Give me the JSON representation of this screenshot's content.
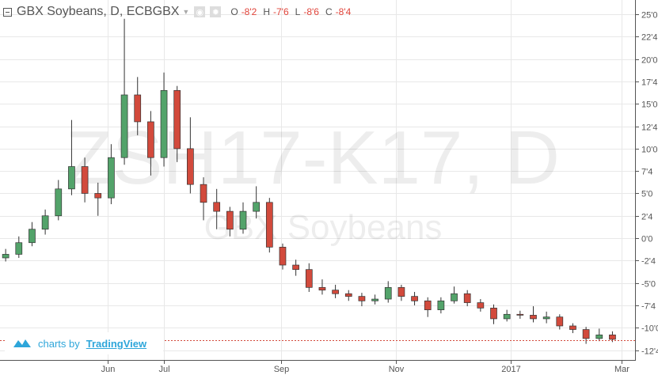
{
  "header": {
    "title": "GBX Soybeans, D, ECBGBX",
    "ohlc": [
      {
        "label": "O",
        "value": "-8'2"
      },
      {
        "label": "H",
        "value": "-7'6"
      },
      {
        "label": "L",
        "value": "-8'6"
      },
      {
        "label": "C",
        "value": "-8'4"
      }
    ]
  },
  "watermark": {
    "symbol": "ZSH17-K17, D",
    "name": "GBX Soybeans"
  },
  "branding": {
    "prefix": "charts by",
    "link": "TradingView"
  },
  "colors": {
    "up": "#53a36a",
    "down": "#d24a3c",
    "wick": "#333333",
    "price_line": "#d24a3c",
    "grid": "#e8e8e8",
    "accent": "#2ea6da"
  },
  "chart_data": {
    "type": "candlestick",
    "title": "GBX Soybeans, D, ECBGBX",
    "x_ticks": [
      {
        "label": "Jun",
        "date": "2016-06-01"
      },
      {
        "label": "Jul",
        "date": "2016-07-01"
      },
      {
        "label": "Sep",
        "date": "2016-09-01"
      },
      {
        "label": "Nov",
        "date": "2016-11-01"
      },
      {
        "label": "2017",
        "date": "2017-01-01"
      },
      {
        "label": "Mar",
        "date": "2017-03-01"
      }
    ],
    "y_ticks": [
      {
        "label": "25'0",
        "value": 25
      },
      {
        "label": "22'4",
        "value": 22.5
      },
      {
        "label": "20'0",
        "value": 20
      },
      {
        "label": "17'4",
        "value": 17.5
      },
      {
        "label": "15'0",
        "value": 15
      },
      {
        "label": "12'4",
        "value": 12.5
      },
      {
        "label": "10'0",
        "value": 10
      },
      {
        "label": "7'4",
        "value": 7.5
      },
      {
        "label": "5'0",
        "value": 5
      },
      {
        "label": "2'4",
        "value": 2.5
      },
      {
        "label": "0'0",
        "value": 0
      },
      {
        "label": "-2'4",
        "value": -2.5
      },
      {
        "label": "-5'0",
        "value": -5
      },
      {
        "label": "-7'4",
        "value": -7.5
      },
      {
        "label": "-10'0",
        "value": -10
      },
      {
        "label": "-12'4",
        "value": -12.5
      }
    ],
    "ylim": [
      -13.6,
      26.6
    ],
    "xlim": [
      "2016-04-05",
      "2017-03-08"
    ],
    "grid": true,
    "last_price": -11.4,
    "candles": [
      [
        "2016-04-08",
        -2.2,
        -1.2,
        -2.6,
        -1.8
      ],
      [
        "2016-04-15",
        -1.8,
        0.2,
        -2.2,
        -0.5
      ],
      [
        "2016-04-22",
        -0.5,
        1.8,
        -0.9,
        1.0
      ],
      [
        "2016-04-29",
        1.0,
        3.2,
        0.4,
        2.5
      ],
      [
        "2016-05-06",
        2.5,
        6.5,
        2.0,
        5.5
      ],
      [
        "2016-05-13",
        5.5,
        13.2,
        4.8,
        8.0
      ],
      [
        "2016-05-20",
        8.0,
        9.0,
        4.0,
        5.0
      ],
      [
        "2016-05-27",
        5.0,
        6.2,
        2.5,
        4.5
      ],
      [
        "2016-06-03",
        4.5,
        10.5,
        3.8,
        9.0
      ],
      [
        "2016-06-10",
        9.0,
        24.5,
        8.2,
        16.0
      ],
      [
        "2016-06-17",
        16.0,
        18.0,
        11.5,
        13.0
      ],
      [
        "2016-06-24",
        13.0,
        14.2,
        7.0,
        9.0
      ],
      [
        "2016-07-01",
        9.0,
        18.5,
        8.0,
        16.5
      ],
      [
        "2016-07-08",
        16.5,
        17.0,
        8.5,
        10.0
      ],
      [
        "2016-07-15",
        10.0,
        13.5,
        5.0,
        6.0
      ],
      [
        "2016-07-22",
        6.0,
        6.8,
        2.0,
        4.0
      ],
      [
        "2016-07-29",
        4.0,
        5.5,
        1.0,
        3.0
      ],
      [
        "2016-08-05",
        3.0,
        3.5,
        0.2,
        1.0
      ],
      [
        "2016-08-12",
        1.0,
        4.0,
        0.5,
        3.0
      ],
      [
        "2016-08-19",
        3.0,
        5.8,
        2.2,
        4.0
      ],
      [
        "2016-08-26",
        4.0,
        4.5,
        -1.6,
        -1.0
      ],
      [
        "2016-09-02",
        -1.0,
        -0.6,
        -3.5,
        -3.0
      ],
      [
        "2016-09-09",
        -3.0,
        -2.4,
        -4.2,
        -3.5
      ],
      [
        "2016-09-16",
        -3.5,
        -2.8,
        -6.0,
        -5.5
      ],
      [
        "2016-09-23",
        -5.5,
        -4.6,
        -6.3,
        -5.8
      ],
      [
        "2016-09-30",
        -5.8,
        -5.2,
        -6.7,
        -6.2
      ],
      [
        "2016-10-07",
        -6.2,
        -5.8,
        -7.0,
        -6.5
      ],
      [
        "2016-10-14",
        -6.5,
        -6.1,
        -7.6,
        -7.0
      ],
      [
        "2016-10-21",
        -7.0,
        -6.3,
        -7.4,
        -6.8
      ],
      [
        "2016-10-28",
        -6.8,
        -4.8,
        -7.2,
        -5.5
      ],
      [
        "2016-11-04",
        -5.5,
        -5.2,
        -7.0,
        -6.5
      ],
      [
        "2016-11-11",
        -6.5,
        -6.0,
        -7.5,
        -7.0
      ],
      [
        "2016-11-18",
        -7.0,
        -6.6,
        -8.8,
        -8.0
      ],
      [
        "2016-11-25",
        -8.0,
        -6.6,
        -8.4,
        -7.0
      ],
      [
        "2016-12-02",
        -7.0,
        -5.4,
        -7.3,
        -6.2
      ],
      [
        "2016-12-09",
        -6.2,
        -5.8,
        -7.6,
        -7.2
      ],
      [
        "2016-12-16",
        -7.2,
        -6.8,
        -8.2,
        -7.8
      ],
      [
        "2016-12-23",
        -7.8,
        -7.4,
        -9.6,
        -9.0
      ],
      [
        "2016-12-30",
        -9.0,
        -8.0,
        -9.3,
        -8.5
      ],
      [
        "2017-01-06",
        -8.5,
        -8.1,
        -9.0,
        -8.6
      ],
      [
        "2017-01-13",
        -8.6,
        -7.6,
        -9.4,
        -9.0
      ],
      [
        "2017-01-20",
        -9.0,
        -8.2,
        -9.5,
        -8.8
      ],
      [
        "2017-01-27",
        -8.8,
        -8.5,
        -10.2,
        -9.8
      ],
      [
        "2017-02-03",
        -9.8,
        -9.5,
        -10.6,
        -10.2
      ],
      [
        "2017-02-10",
        -10.2,
        -9.9,
        -11.8,
        -11.2
      ],
      [
        "2017-02-17",
        -11.2,
        -10.1,
        -11.5,
        -10.8
      ],
      [
        "2017-02-24",
        -10.8,
        -10.4,
        -11.6,
        -11.3
      ]
    ]
  }
}
